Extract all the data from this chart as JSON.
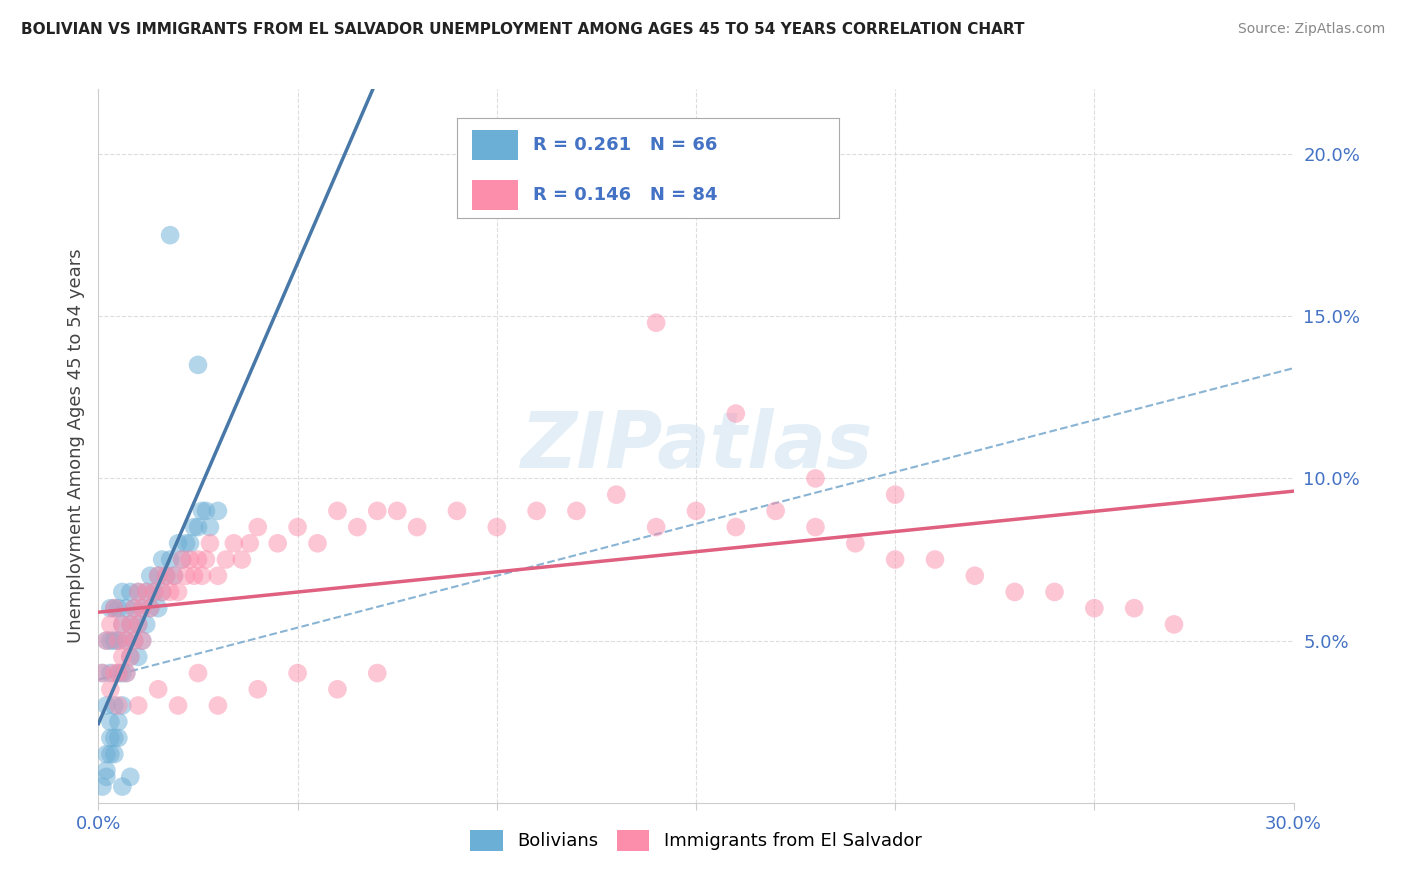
{
  "title": "BOLIVIAN VS IMMIGRANTS FROM EL SALVADOR UNEMPLOYMENT AMONG AGES 45 TO 54 YEARS CORRELATION CHART",
  "source": "Source: ZipAtlas.com",
  "ylabel": "Unemployment Among Ages 45 to 54 years",
  "bolivians_R": "0.261",
  "bolivians_N": "66",
  "salvador_R": "0.146",
  "salvador_N": "84",
  "bolivians_color": "#6baed6",
  "salvador_color": "#fc8eac",
  "line_blue": "#4878a8",
  "line_pink": "#e06080",
  "dashed_color": "#8ab4d4",
  "legend_label_1": "Bolivians",
  "legend_label_2": "Immigrants from El Salvador",
  "xlim": [
    0.0,
    0.3
  ],
  "ylim": [
    0.0,
    0.22
  ],
  "background_color": "#ffffff",
  "watermark": "ZIPatlas",
  "title_color": "#222222",
  "source_color": "#888888",
  "tick_color": "#4472c4",
  "ylabel_color": "#444444",
  "grid_color": "#dddddd"
}
